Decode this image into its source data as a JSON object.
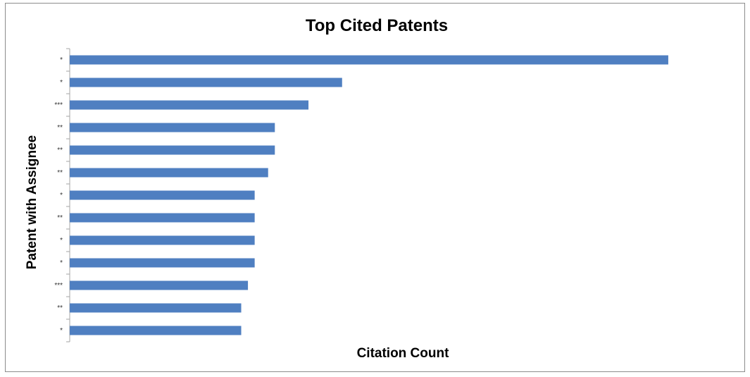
{
  "chart_data": {
    "type": "bar",
    "orientation": "horizontal",
    "title": "Top Cited Patents",
    "xlabel": "Citation Count",
    "ylabel": "Patent with Assignee",
    "categories": [
      "*",
      "*",
      "***",
      "**",
      "**",
      "**",
      "*",
      "**",
      "*",
      "*",
      "***",
      "**",
      "*"
    ],
    "values": [
      89,
      40.5,
      35.5,
      30.5,
      30.5,
      29.5,
      27.5,
      27.5,
      27.5,
      27.5,
      26.5,
      25.5,
      25.5
    ],
    "xlim": [
      0,
      100
    ],
    "grid": false,
    "legend": "none",
    "bar_color": "#4f7fc1"
  }
}
